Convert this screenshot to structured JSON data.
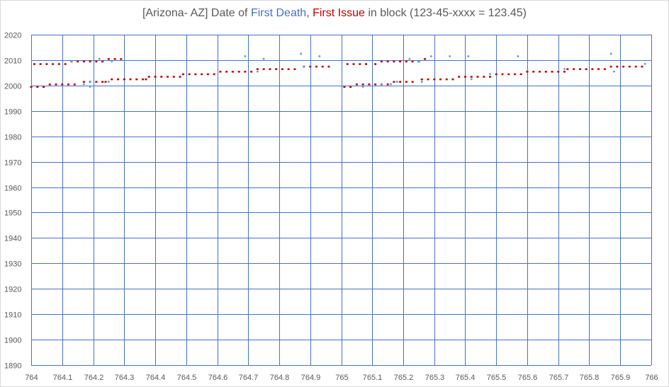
{
  "title": {
    "prefix": "[Arizona- AZ] Date of ",
    "blue": "First Death",
    "comma": ", ",
    "red": "First Issue",
    "suffix": " in block (123-45-xxxx = 123.45)"
  },
  "colors": {
    "first_death": "#5b9bd5",
    "first_issue": "#c00000",
    "grid": "#4472c4",
    "axis_text": "#595959"
  },
  "chart_data": {
    "type": "scatter",
    "xlim": [
      764,
      766
    ],
    "ylim": [
      1890,
      2020
    ],
    "x_ticks": [
      "764",
      "764.1",
      "764.2",
      "764.3",
      "764.4",
      "764.5",
      "764.6",
      "764.7",
      "764.8",
      "764.9",
      "765",
      "765.1",
      "765.2",
      "765.3",
      "765.4",
      "765.5",
      "765.6",
      "765.7",
      "765.8",
      "765.9",
      "766"
    ],
    "y_ticks": [
      "1890",
      "1900",
      "1910",
      "1920",
      "1930",
      "1940",
      "1950",
      "1960",
      "1970",
      "1980",
      "1990",
      "2000",
      "2010",
      "2020"
    ],
    "grid": true,
    "series": [
      {
        "name": "First Issue",
        "marker": "red-dash",
        "points": [
          [
            764.0,
            1999.5
          ],
          [
            764.02,
            1999.5
          ],
          [
            764.04,
            1999.5
          ],
          [
            764.01,
            2008.5
          ],
          [
            764.03,
            2008.5
          ],
          [
            764.05,
            2008.5
          ],
          [
            764.07,
            2008.5
          ],
          [
            764.06,
            2000.5
          ],
          [
            764.08,
            2000.5
          ],
          [
            764.1,
            2000.5
          ],
          [
            764.12,
            2000.5
          ],
          [
            764.14,
            2000.5
          ],
          [
            764.09,
            2008.5
          ],
          [
            764.11,
            2008.5
          ],
          [
            764.13,
            2009.5
          ],
          [
            764.15,
            2009.5
          ],
          [
            764.17,
            2009.5
          ],
          [
            764.19,
            2009.5
          ],
          [
            764.21,
            2009.5
          ],
          [
            764.23,
            2009.5
          ],
          [
            764.17,
            2001.5
          ],
          [
            764.19,
            2001.5
          ],
          [
            764.21,
            2001.5
          ],
          [
            764.23,
            2001.5
          ],
          [
            764.24,
            2001.5
          ],
          [
            764.25,
            2010.5
          ],
          [
            764.27,
            2010.5
          ],
          [
            764.29,
            2010.5
          ],
          [
            764.26,
            2002.5
          ],
          [
            764.28,
            2002.5
          ],
          [
            764.3,
            2002.5
          ],
          [
            764.32,
            2002.5
          ],
          [
            764.34,
            2002.5
          ],
          [
            764.36,
            2002.5
          ],
          [
            764.37,
            2002.5
          ],
          [
            764.38,
            2003.5
          ],
          [
            764.4,
            2003.5
          ],
          [
            764.42,
            2003.5
          ],
          [
            764.44,
            2003.5
          ],
          [
            764.46,
            2003.5
          ],
          [
            764.48,
            2003.5
          ],
          [
            764.49,
            2004.5
          ],
          [
            764.51,
            2004.5
          ],
          [
            764.53,
            2004.5
          ],
          [
            764.55,
            2004.5
          ],
          [
            764.57,
            2004.5
          ],
          [
            764.59,
            2004.5
          ],
          [
            764.61,
            2005.5
          ],
          [
            764.63,
            2005.5
          ],
          [
            764.65,
            2005.5
          ],
          [
            764.67,
            2005.5
          ],
          [
            764.69,
            2005.5
          ],
          [
            764.71,
            2005.5
          ],
          [
            764.73,
            2006.5
          ],
          [
            764.75,
            2006.5
          ],
          [
            764.77,
            2006.5
          ],
          [
            764.79,
            2006.5
          ],
          [
            764.81,
            2006.5
          ],
          [
            764.83,
            2006.5
          ],
          [
            764.85,
            2006.5
          ],
          [
            764.88,
            2007.5
          ],
          [
            764.9,
            2007.5
          ],
          [
            764.92,
            2007.5
          ],
          [
            764.94,
            2007.5
          ],
          [
            764.96,
            2007.5
          ],
          [
            765.01,
            1999.5
          ],
          [
            765.03,
            1999.5
          ],
          [
            765.02,
            2008.5
          ],
          [
            765.04,
            2008.5
          ],
          [
            765.06,
            2008.5
          ],
          [
            765.08,
            2008.5
          ],
          [
            765.05,
            2000.5
          ],
          [
            765.07,
            2000.5
          ],
          [
            765.09,
            2000.5
          ],
          [
            765.11,
            2000.5
          ],
          [
            765.13,
            2000.5
          ],
          [
            765.15,
            2000.5
          ],
          [
            765.11,
            2008.5
          ],
          [
            765.13,
            2009.5
          ],
          [
            765.15,
            2009.5
          ],
          [
            765.17,
            2009.5
          ],
          [
            765.19,
            2009.5
          ],
          [
            765.21,
            2009.5
          ],
          [
            765.23,
            2009.5
          ],
          [
            765.25,
            2009.5
          ],
          [
            765.17,
            2001.5
          ],
          [
            765.19,
            2001.5
          ],
          [
            765.21,
            2001.5
          ],
          [
            765.23,
            2001.5
          ],
          [
            765.27,
            2010.5
          ],
          [
            765.26,
            2002.5
          ],
          [
            765.28,
            2002.5
          ],
          [
            765.3,
            2002.5
          ],
          [
            765.32,
            2002.5
          ],
          [
            765.34,
            2002.5
          ],
          [
            765.36,
            2002.5
          ],
          [
            765.38,
            2003.5
          ],
          [
            765.4,
            2003.5
          ],
          [
            765.42,
            2003.5
          ],
          [
            765.44,
            2003.5
          ],
          [
            765.46,
            2003.5
          ],
          [
            765.48,
            2003.5
          ],
          [
            765.5,
            2004.5
          ],
          [
            765.52,
            2004.5
          ],
          [
            765.54,
            2004.5
          ],
          [
            765.56,
            2004.5
          ],
          [
            765.58,
            2004.5
          ],
          [
            765.6,
            2005.5
          ],
          [
            765.62,
            2005.5
          ],
          [
            765.64,
            2005.5
          ],
          [
            765.66,
            2005.5
          ],
          [
            765.68,
            2005.5
          ],
          [
            765.7,
            2005.5
          ],
          [
            765.72,
            2005.5
          ],
          [
            765.73,
            2006.5
          ],
          [
            765.75,
            2006.5
          ],
          [
            765.77,
            2006.5
          ],
          [
            765.79,
            2006.5
          ],
          [
            765.81,
            2006.5
          ],
          [
            765.83,
            2006.5
          ],
          [
            765.85,
            2006.5
          ],
          [
            765.87,
            2007.5
          ],
          [
            765.89,
            2007.5
          ],
          [
            765.91,
            2007.5
          ],
          [
            765.93,
            2007.5
          ],
          [
            765.95,
            2007.5
          ],
          [
            765.97,
            2007.5
          ]
        ]
      },
      {
        "name": "First Death",
        "marker": "blue-dot",
        "points": [
          [
            764.13,
            2009.5
          ],
          [
            764.17,
            2000.5
          ],
          [
            764.19,
            2001.5
          ],
          [
            764.19,
            1999.5
          ],
          [
            764.22,
            2010.5
          ],
          [
            764.25,
            2001.5
          ],
          [
            764.26,
            2009.5
          ],
          [
            764.69,
            2011.5
          ],
          [
            764.73,
            2005.5
          ],
          [
            764.75,
            2010.5
          ],
          [
            764.87,
            2012.5
          ],
          [
            764.88,
            2007.5
          ],
          [
            764.93,
            2011.5
          ],
          [
            765.07,
            1999.5
          ],
          [
            765.13,
            2000.5
          ],
          [
            765.16,
            2000.5
          ],
          [
            765.18,
            2001.5
          ],
          [
            765.22,
            2010.5
          ],
          [
            765.25,
            2009.5
          ],
          [
            765.26,
            2001.5
          ],
          [
            765.29,
            2011.5
          ],
          [
            765.35,
            2011.5
          ],
          [
            765.41,
            2011.5
          ],
          [
            765.42,
            2002.5
          ],
          [
            765.48,
            2004.5
          ],
          [
            765.57,
            2011.5
          ],
          [
            765.72,
            2006.5
          ],
          [
            765.87,
            2012.5
          ],
          [
            765.88,
            2005.5
          ],
          [
            765.98,
            2008.5
          ]
        ]
      }
    ]
  }
}
